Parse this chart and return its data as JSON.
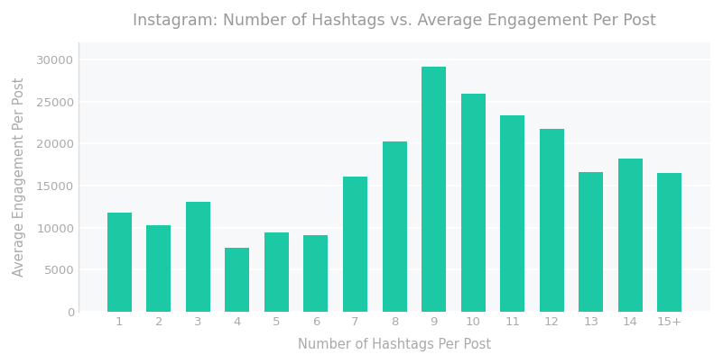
{
  "title": "Instagram: Number of Hashtags vs. Average Engagement Per Post",
  "xlabel": "Number of Hashtags Per Post",
  "ylabel": "Average Engagement Per Post",
  "categories": [
    "1",
    "2",
    "3",
    "4",
    "5",
    "6",
    "7",
    "8",
    "9",
    "10",
    "11",
    "12",
    "13",
    "14",
    "15+"
  ],
  "values": [
    11800,
    10300,
    13100,
    7600,
    9400,
    9100,
    16100,
    20300,
    29100,
    25900,
    23400,
    21800,
    16600,
    18200,
    16500
  ],
  "bar_color": "#1DC9A4",
  "fig_background_color": "#FFFFFF",
  "plot_background_color": "#F7F8FA",
  "title_fontsize": 12.5,
  "label_fontsize": 10.5,
  "tick_fontsize": 9.5,
  "title_color": "#999999",
  "label_color": "#AAAAAA",
  "tick_color": "#AAAAAA",
  "ylim": [
    0,
    32000
  ],
  "yticks": [
    0,
    5000,
    10000,
    15000,
    20000,
    25000,
    30000
  ],
  "bar_width": 0.62,
  "spine_color": "#DDDDDD"
}
